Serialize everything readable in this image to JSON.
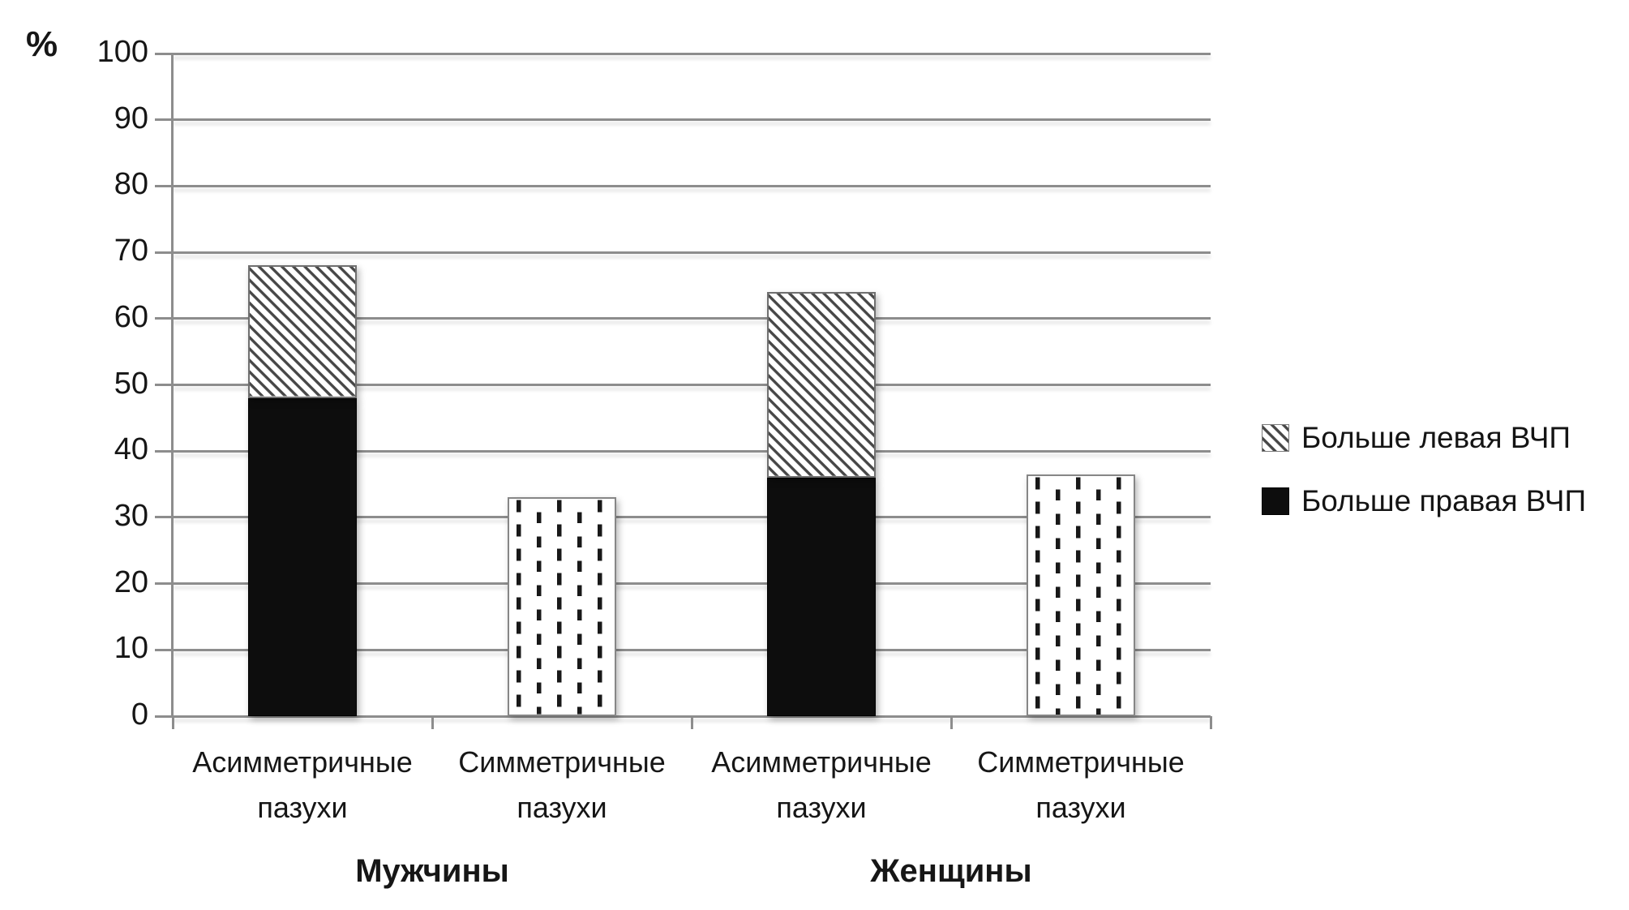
{
  "chart_data": {
    "type": "bar",
    "stacked": true,
    "ylabel": "%",
    "ylim": [
      0,
      100
    ],
    "ytick_step": 10,
    "grid": true,
    "legend_position": "right",
    "legend": [
      {
        "label": "Больше левая ВЧП",
        "swatch": "diagonal-hatch"
      },
      {
        "label": "Больше правая ВЧП",
        "swatch": "solid-black"
      }
    ],
    "groups": [
      {
        "label": "Мужчины",
        "bars": [
          {
            "category_lines": [
              "Асимметричные",
              "пазухи"
            ],
            "total": 68,
            "segments": [
              {
                "series": "Больше правая ВЧП",
                "value": 48,
                "fill": "solid-black"
              },
              {
                "series": "Больше левая ВЧП",
                "value": 20,
                "fill": "diagonal-hatch"
              }
            ]
          },
          {
            "category_lines": [
              "Симметричные",
              "пазухи"
            ],
            "total": 33,
            "segments": [
              {
                "series": "Симметричные пазухи",
                "value": 33,
                "fill": "vertical-dashes"
              }
            ]
          }
        ]
      },
      {
        "label": "Женщины",
        "bars": [
          {
            "category_lines": [
              "Асимметричные",
              "пазухи"
            ],
            "total": 64,
            "segments": [
              {
                "series": "Больше правая ВЧП",
                "value": 36,
                "fill": "solid-black"
              },
              {
                "series": "Больше левая ВЧП",
                "value": 28,
                "fill": "diagonal-hatch"
              }
            ]
          },
          {
            "category_lines": [
              "Симметричные",
              "пазухи"
            ],
            "total": 36.5,
            "segments": [
              {
                "series": "Симметричные пазухи",
                "value": 36.5,
                "fill": "vertical-dashes"
              }
            ]
          }
        ]
      }
    ],
    "colors": {
      "solid_fill": "#0d0d0d",
      "hatch_line": "#474747",
      "dash_ink": "#181818",
      "gridline": "#8d8d8d",
      "text": "#161616"
    }
  }
}
